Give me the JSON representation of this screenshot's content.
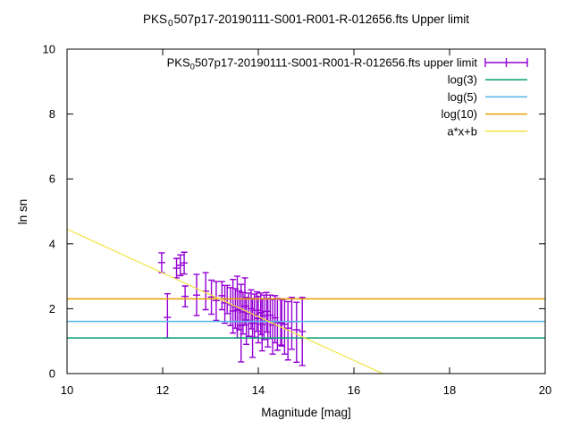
{
  "title": {
    "prefix": "PKS",
    "subscript": "0",
    "rest": "507p17-20190111-S001-R001-R-012656.fts Upper limit"
  },
  "axes": {
    "x": {
      "label": "Magnitude [mag]",
      "min": 10,
      "max": 20,
      "ticks": [
        10,
        12,
        14,
        16,
        18,
        20
      ]
    },
    "y": {
      "label": "ln sn",
      "min": 0,
      "max": 10,
      "ticks": [
        0,
        2,
        4,
        6,
        8,
        10
      ]
    }
  },
  "legend": {
    "entries": [
      {
        "sample": "errorbar",
        "color": "#9400d3",
        "parts": [
          {
            "t": "PKS"
          },
          {
            "t": "0",
            "sub": true
          },
          {
            "t": "507p17-20190111-S001-R001-R-012656.fts upper limit"
          }
        ]
      },
      {
        "sample": "line",
        "color": "#009e73",
        "label": "log(3)"
      },
      {
        "sample": "line",
        "color": "#56b4e9",
        "label": "log(5)"
      },
      {
        "sample": "line",
        "color": "#e69f00",
        "label": "log(10)"
      },
      {
        "sample": "line",
        "color": "#f0e442",
        "label": "a*x+b"
      }
    ]
  },
  "chart_data": {
    "type": "scatter",
    "title": "PKS_0507p17-20190111-S001-R001-R-012656.fts Upper limit",
    "xlabel": "Magnitude [mag]",
    "ylabel": "ln sn",
    "xlim": [
      10,
      20
    ],
    "ylim": [
      0,
      10
    ],
    "x_ticks": [
      10,
      12,
      14,
      16,
      18,
      20
    ],
    "y_ticks": [
      0,
      2,
      4,
      6,
      8,
      10
    ],
    "grid": false,
    "legend_position": "top-right-inside",
    "series": [
      {
        "name": "PKS_0507p17-20190111-S001-R001-R-012656.fts upper limit",
        "type": "yerrorbars",
        "color": "#9400d3",
        "points_format": [
          "mag",
          "ln_sn",
          "err_low",
          "err_high"
        ],
        "points": [
          [
            11.98,
            3.42,
            3.11,
            3.72
          ],
          [
            12.1,
            1.73,
            1.1,
            2.46
          ],
          [
            12.29,
            3.25,
            2.95,
            3.55
          ],
          [
            12.37,
            3.34,
            3.02,
            3.66
          ],
          [
            12.45,
            3.41,
            3.07,
            3.74
          ],
          [
            12.47,
            2.38,
            2.06,
            2.7
          ],
          [
            12.71,
            2.42,
            1.79,
            3.06
          ],
          [
            12.9,
            2.54,
            1.97,
            3.11
          ],
          [
            13.02,
            2.36,
            1.83,
            2.88
          ],
          [
            13.12,
            2.25,
            1.64,
            2.84
          ],
          [
            13.24,
            2.4,
            1.97,
            2.84
          ],
          [
            13.3,
            2.18,
            1.55,
            2.72
          ],
          [
            13.35,
            2.3,
            1.85,
            2.72
          ],
          [
            13.42,
            2.12,
            1.48,
            2.65
          ],
          [
            13.47,
            1.93,
            1.25,
            2.9
          ],
          [
            13.52,
            2.05,
            1.4,
            2.62
          ],
          [
            13.56,
            1.95,
            1.1,
            3.0
          ],
          [
            13.6,
            1.98,
            1.35,
            2.55
          ],
          [
            13.64,
            1.48,
            0.36,
            2.75
          ],
          [
            13.68,
            1.9,
            1.22,
            2.5
          ],
          [
            13.72,
            2.08,
            1.5,
            2.95
          ],
          [
            13.75,
            1.65,
            0.9,
            2.35
          ],
          [
            13.8,
            1.85,
            1.15,
            2.48
          ],
          [
            13.85,
            2.0,
            1.38,
            2.58
          ],
          [
            13.88,
            1.55,
            0.5,
            2.32
          ],
          [
            13.92,
            1.82,
            1.12,
            2.45
          ],
          [
            13.97,
            1.95,
            1.3,
            2.52
          ],
          [
            14.0,
            1.7,
            0.95,
            2.38
          ],
          [
            14.05,
            1.88,
            1.2,
            2.48
          ],
          [
            14.08,
            1.52,
            0.7,
            2.3
          ],
          [
            14.12,
            1.78,
            1.05,
            2.42
          ],
          [
            14.17,
            1.92,
            1.28,
            2.5
          ],
          [
            14.2,
            1.62,
            0.82,
            2.32
          ],
          [
            14.25,
            1.8,
            1.08,
            2.42
          ],
          [
            14.3,
            1.5,
            0.6,
            2.28
          ],
          [
            14.35,
            1.72,
            0.95,
            2.4
          ],
          [
            14.4,
            1.58,
            0.72,
            2.32
          ],
          [
            14.47,
            1.6,
            0.88,
            2.3
          ],
          [
            14.49,
            1.55,
            0.85,
            2.28
          ],
          [
            14.55,
            1.52,
            0.6,
            2.3
          ],
          [
            14.62,
            1.4,
            0.42,
            2.22
          ],
          [
            14.7,
            1.6,
            0.75,
            2.35
          ],
          [
            14.8,
            1.35,
            0.35,
            2.2
          ],
          [
            14.92,
            1.3,
            0.25,
            2.35
          ]
        ]
      },
      {
        "name": "log(3)",
        "type": "hline",
        "color": "#009e73",
        "value": 1.0986
      },
      {
        "name": "log(5)",
        "type": "hline",
        "color": "#56b4e9",
        "value": 1.6094
      },
      {
        "name": "log(10)",
        "type": "hline",
        "color": "#e69f00",
        "value": 2.3026
      },
      {
        "name": "a*x+b",
        "type": "linear",
        "color": "#f0e442",
        "a": -0.674,
        "b": 11.19,
        "x_start": 10,
        "x_end": 16.6
      }
    ]
  }
}
